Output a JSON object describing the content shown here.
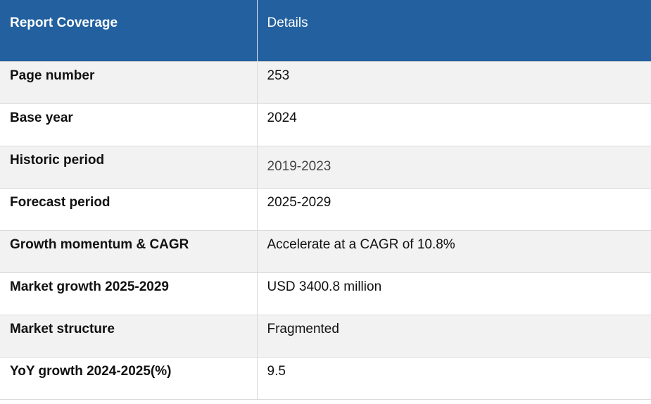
{
  "header": {
    "col1": "Report Coverage",
    "col2": "Details"
  },
  "rows": [
    {
      "label": "Page number",
      "value": "253"
    },
    {
      "label": "Base year",
      "value": "2024"
    },
    {
      "label": "Historic period",
      "value": "2019-2023"
    },
    {
      "label": "Forecast period",
      "value": "2025-2029"
    },
    {
      "label": "Growth momentum & CAGR",
      "value": "Accelerate at a CAGR of 10.8%"
    },
    {
      "label": "Market growth 2025-2029",
      "value": "USD 3400.8 million"
    },
    {
      "label": "Market structure",
      "value": "Fragmented"
    },
    {
      "label": "YoY growth 2024-2025(%)",
      "value": "9.5"
    }
  ]
}
